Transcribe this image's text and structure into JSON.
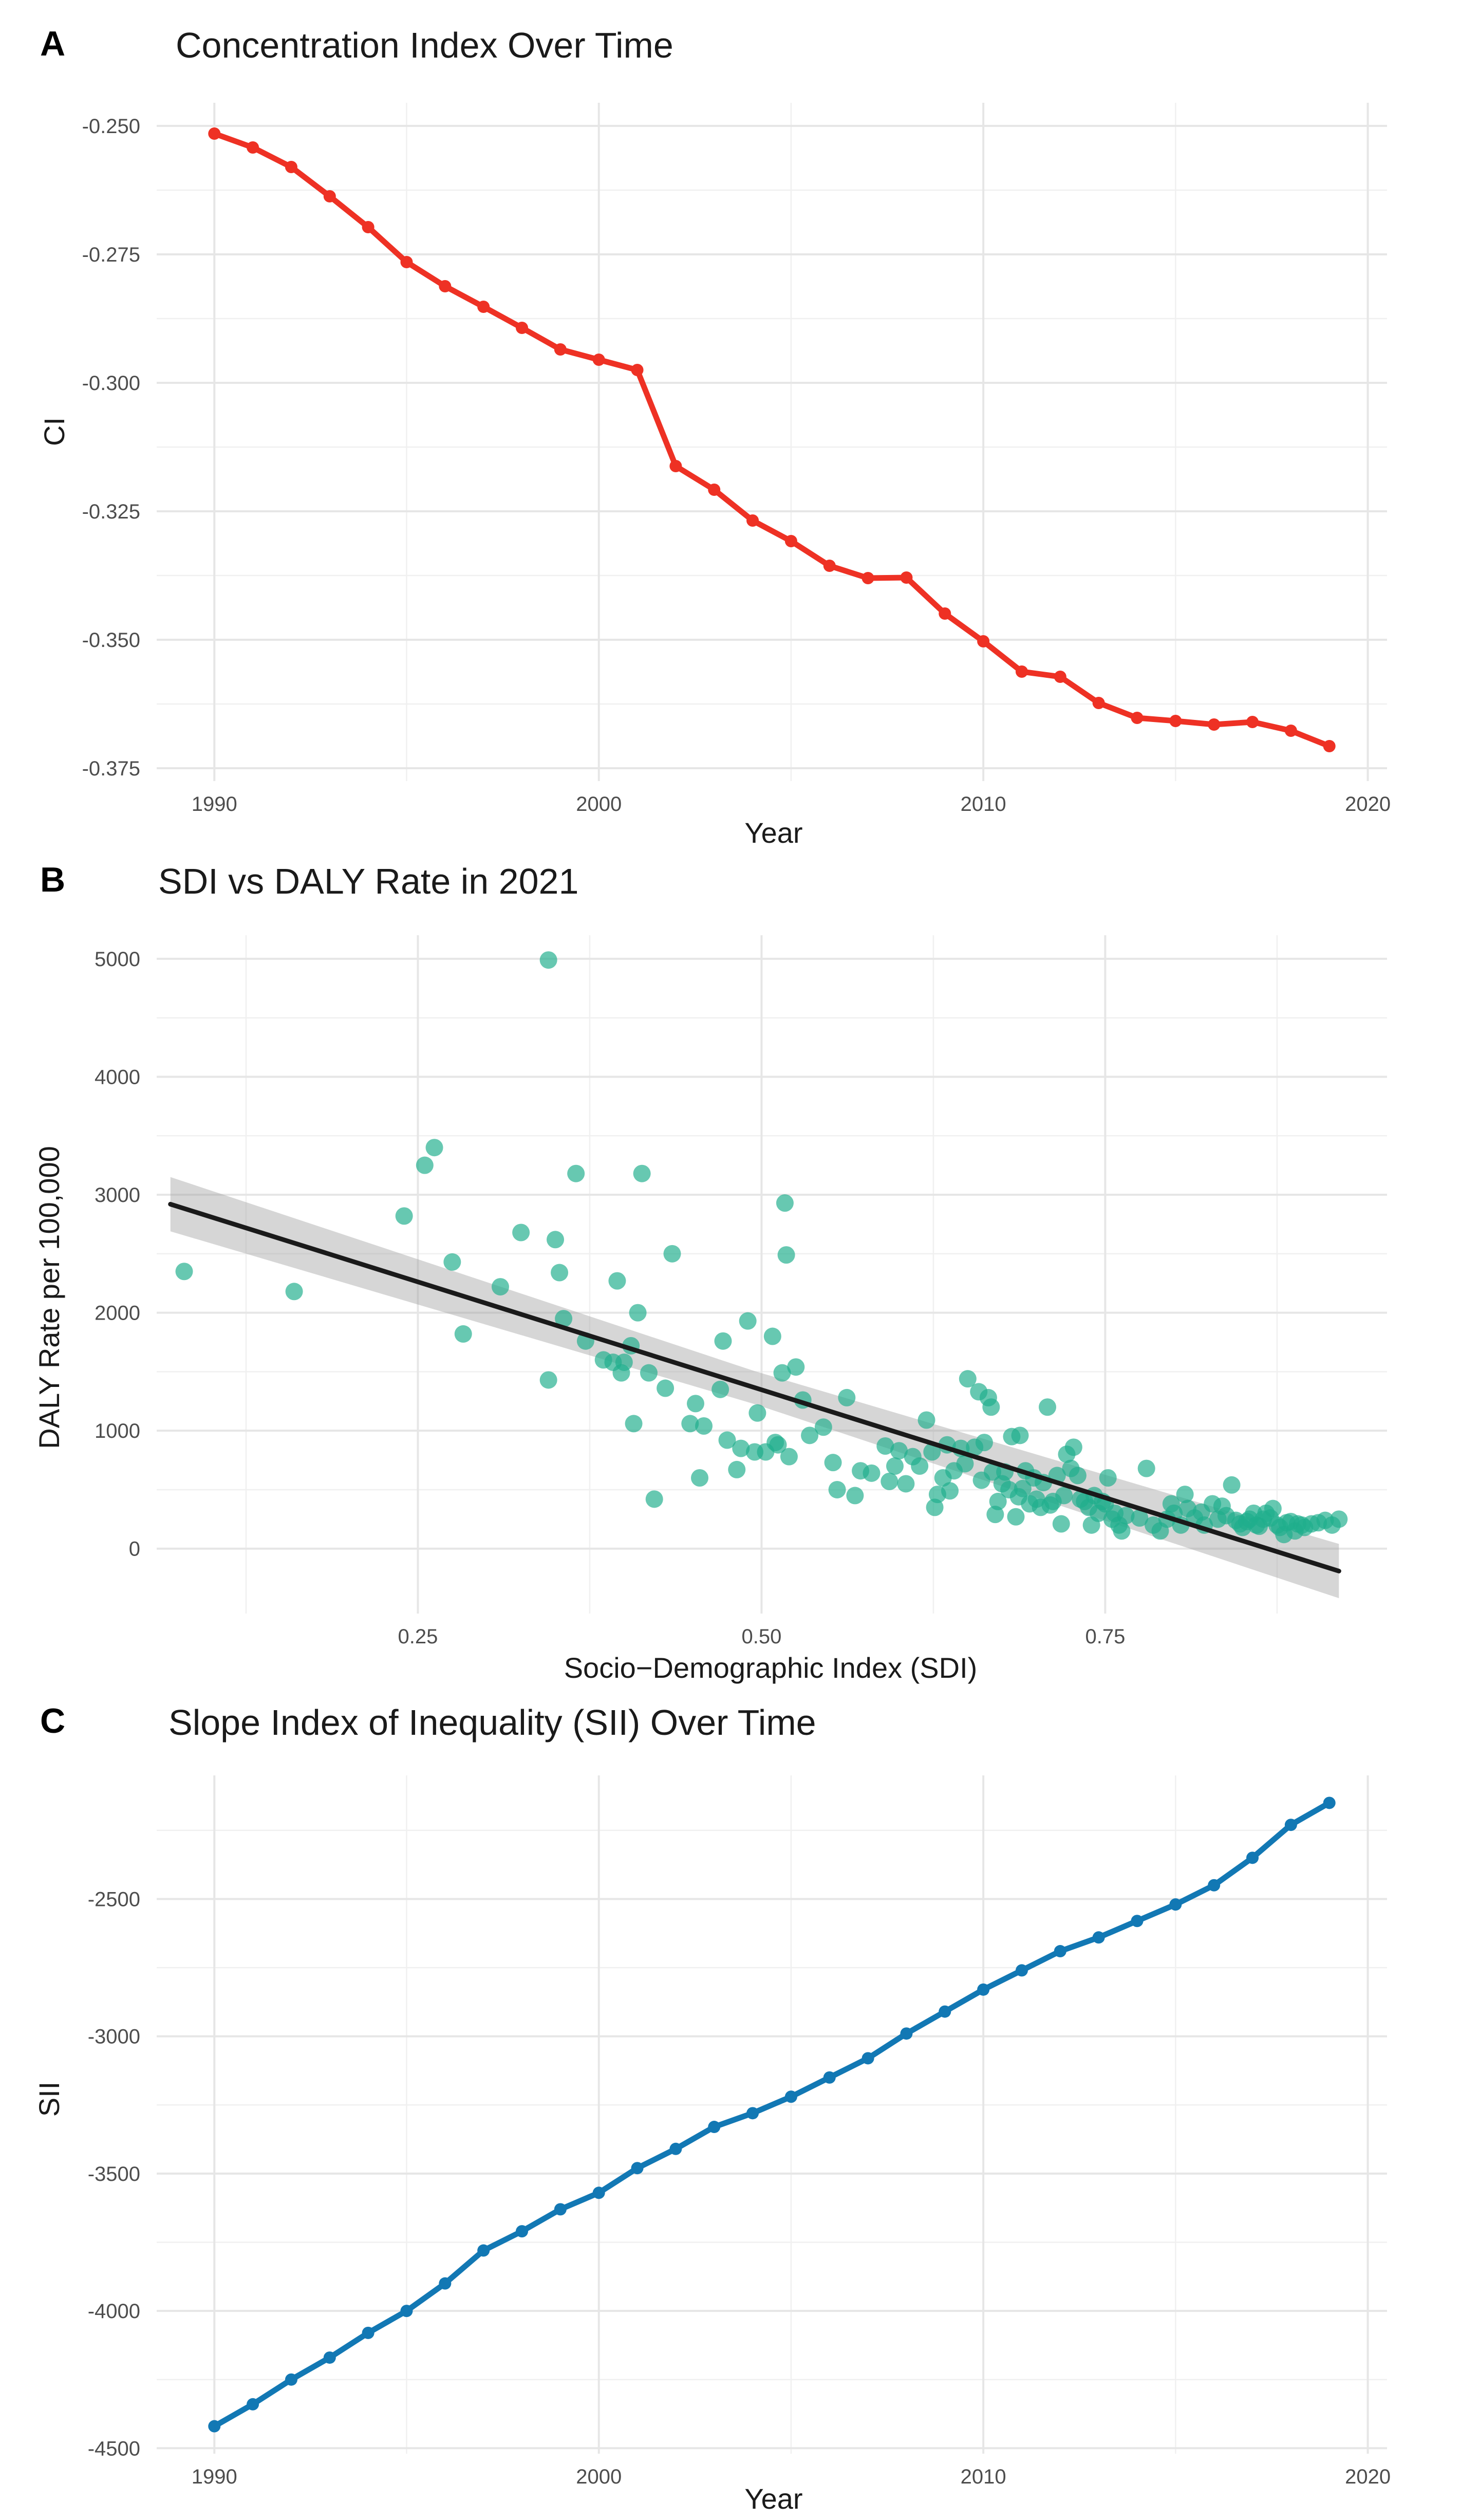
{
  "chart_data": [
    {
      "tag": "A",
      "type": "line",
      "title": "Concentration Index Over Time",
      "xlabel": "Year",
      "ylabel": "CI",
      "color": "#EE3124",
      "xlim": [
        1988.5,
        2020.5
      ],
      "ylim": [
        -0.3775,
        -0.2455
      ],
      "xticks": [
        1990,
        2000,
        2010,
        2020
      ],
      "yticks": [
        -0.25,
        -0.275,
        -0.3,
        -0.325,
        -0.35,
        -0.375
      ],
      "ytick_labels": [
        "-0.250",
        "-0.275",
        "-0.300",
        "-0.325",
        "-0.350",
        "-0.375"
      ],
      "xminor": [
        1995,
        2005,
        2015
      ],
      "yminor": [
        -0.2625,
        -0.2875,
        -0.3125,
        -0.3375,
        -0.3625
      ],
      "x": [
        1990,
        1991,
        1992,
        1993,
        1994,
        1995,
        1996,
        1997,
        1998,
        1999,
        2000,
        2001,
        2002,
        2003,
        2004,
        2005,
        2006,
        2007,
        2008,
        2009,
        2010,
        2011,
        2012,
        2013,
        2014,
        2015,
        2016,
        2017,
        2018,
        2019
      ],
      "y": [
        -0.2515,
        -0.2542,
        -0.258,
        -0.2637,
        -0.2697,
        -0.2765,
        -0.2812,
        -0.2852,
        -0.2893,
        -0.2935,
        -0.2955,
        -0.2975,
        -0.3162,
        -0.3208,
        -0.3268,
        -0.3308,
        -0.3356,
        -0.338,
        -0.3379,
        -0.3449,
        -0.3503,
        -0.3562,
        -0.3572,
        -0.3623,
        -0.3652,
        -0.3658,
        -0.3665,
        -0.366,
        -0.3677,
        -0.3707
      ]
    },
    {
      "tag": "B",
      "type": "scatter",
      "title": "SDI vs DALY Rate in 2021",
      "xlabel": "Socio−Demographic Index (SDI)",
      "ylabel": "DALY Rate per 100,000",
      "color": "#1FAE8C",
      "line_color": "#1a1a1a",
      "band_color": "#999999",
      "xlim": [
        0.06,
        0.955
      ],
      "ylim": [
        -550,
        5200
      ],
      "xticks": [
        0.25,
        0.5,
        0.75
      ],
      "xtick_labels": [
        "0.25",
        "0.50",
        "0.75"
      ],
      "yticks": [
        0,
        1000,
        2000,
        3000,
        4000,
        5000
      ],
      "ytick_labels": [
        "0",
        "1000",
        "2000",
        "3000",
        "4000",
        "5000"
      ],
      "xminor": [
        0.125,
        0.375,
        0.625,
        0.875
      ],
      "yminor": [
        500,
        1500,
        2500,
        3500,
        4500
      ],
      "fit": {
        "x": [
          0.07,
          0.92
        ],
        "y": [
          2920,
          -190
        ],
        "band": [
          230,
          140,
          230
        ]
      },
      "points": [
        [
          0.08,
          2350
        ],
        [
          0.16,
          2180
        ],
        [
          0.24,
          2820
        ],
        [
          0.255,
          3250
        ],
        [
          0.262,
          3400
        ],
        [
          0.275,
          2430
        ],
        [
          0.283,
          1820
        ],
        [
          0.31,
          2220
        ],
        [
          0.325,
          2680
        ],
        [
          0.345,
          4990
        ],
        [
          0.345,
          1430
        ],
        [
          0.35,
          2620
        ],
        [
          0.353,
          2340
        ],
        [
          0.356,
          1950
        ],
        [
          0.365,
          3180
        ],
        [
          0.372,
          1760
        ],
        [
          0.385,
          1600
        ],
        [
          0.392,
          1580
        ],
        [
          0.395,
          2270
        ],
        [
          0.398,
          1490
        ],
        [
          0.4,
          1580
        ],
        [
          0.405,
          1720
        ],
        [
          0.407,
          1060
        ],
        [
          0.41,
          2000
        ],
        [
          0.413,
          3180
        ],
        [
          0.418,
          1490
        ],
        [
          0.422,
          420
        ],
        [
          0.43,
          1360
        ],
        [
          0.435,
          2500
        ],
        [
          0.448,
          1060
        ],
        [
          0.452,
          1230
        ],
        [
          0.455,
          600
        ],
        [
          0.458,
          1040
        ],
        [
          0.47,
          1350
        ],
        [
          0.472,
          1760
        ],
        [
          0.475,
          920
        ],
        [
          0.482,
          670
        ],
        [
          0.485,
          850
        ],
        [
          0.49,
          1930
        ],
        [
          0.495,
          820
        ],
        [
          0.497,
          1150
        ],
        [
          0.503,
          820
        ],
        [
          0.508,
          1800
        ],
        [
          0.51,
          900
        ],
        [
          0.512,
          880
        ],
        [
          0.515,
          1490
        ],
        [
          0.517,
          2930
        ],
        [
          0.518,
          2490
        ],
        [
          0.52,
          780
        ],
        [
          0.525,
          1540
        ],
        [
          0.53,
          1260
        ],
        [
          0.535,
          960
        ],
        [
          0.545,
          1030
        ],
        [
          0.552,
          730
        ],
        [
          0.555,
          500
        ],
        [
          0.562,
          1280
        ],
        [
          0.568,
          450
        ],
        [
          0.572,
          660
        ],
        [
          0.58,
          640
        ],
        [
          0.59,
          870
        ],
        [
          0.593,
          570
        ],
        [
          0.597,
          700
        ],
        [
          0.6,
          830
        ],
        [
          0.605,
          550
        ],
        [
          0.61,
          780
        ],
        [
          0.615,
          700
        ],
        [
          0.62,
          1090
        ],
        [
          0.624,
          820
        ],
        [
          0.626,
          350
        ],
        [
          0.628,
          460
        ],
        [
          0.632,
          600
        ],
        [
          0.635,
          880
        ],
        [
          0.637,
          490
        ],
        [
          0.64,
          660
        ],
        [
          0.645,
          850
        ],
        [
          0.648,
          720
        ],
        [
          0.65,
          1440
        ],
        [
          0.655,
          860
        ],
        [
          0.658,
          1330
        ],
        [
          0.66,
          580
        ],
        [
          0.662,
          900
        ],
        [
          0.665,
          1280
        ],
        [
          0.667,
          1200
        ],
        [
          0.668,
          650
        ],
        [
          0.67,
          290
        ],
        [
          0.672,
          400
        ],
        [
          0.675,
          550
        ],
        [
          0.677,
          650
        ],
        [
          0.68,
          500
        ],
        [
          0.682,
          950
        ],
        [
          0.685,
          270
        ],
        [
          0.687,
          440
        ],
        [
          0.688,
          960
        ],
        [
          0.69,
          510
        ],
        [
          0.692,
          660
        ],
        [
          0.695,
          380
        ],
        [
          0.698,
          600
        ],
        [
          0.7,
          420
        ],
        [
          0.703,
          350
        ],
        [
          0.705,
          560
        ],
        [
          0.708,
          1200
        ],
        [
          0.71,
          370
        ],
        [
          0.712,
          400
        ],
        [
          0.715,
          620
        ],
        [
          0.718,
          210
        ],
        [
          0.72,
          450
        ],
        [
          0.722,
          800
        ],
        [
          0.725,
          680
        ],
        [
          0.727,
          860
        ],
        [
          0.73,
          620
        ],
        [
          0.732,
          420
        ],
        [
          0.735,
          400
        ],
        [
          0.738,
          350
        ],
        [
          0.74,
          200
        ],
        [
          0.742,
          450
        ],
        [
          0.745,
          300
        ],
        [
          0.748,
          400
        ],
        [
          0.75,
          380
        ],
        [
          0.752,
          600
        ],
        [
          0.755,
          250
        ],
        [
          0.757,
          300
        ],
        [
          0.76,
          200
        ],
        [
          0.762,
          150
        ],
        [
          0.765,
          280
        ],
        [
          0.775,
          260
        ],
        [
          0.78,
          680
        ],
        [
          0.785,
          200
        ],
        [
          0.79,
          150
        ],
        [
          0.795,
          250
        ],
        [
          0.798,
          380
        ],
        [
          0.8,
          300
        ],
        [
          0.805,
          200
        ],
        [
          0.808,
          460
        ],
        [
          0.81,
          340
        ],
        [
          0.815,
          260
        ],
        [
          0.82,
          310
        ],
        [
          0.822,
          200
        ],
        [
          0.828,
          380
        ],
        [
          0.832,
          250
        ],
        [
          0.835,
          360
        ],
        [
          0.838,
          280
        ],
        [
          0.842,
          540
        ],
        [
          0.845,
          240
        ],
        [
          0.848,
          210
        ],
        [
          0.85,
          180
        ],
        [
          0.853,
          230
        ],
        [
          0.855,
          250
        ],
        [
          0.858,
          300
        ],
        [
          0.86,
          200
        ],
        [
          0.862,
          190
        ],
        [
          0.865,
          250
        ],
        [
          0.867,
          300
        ],
        [
          0.87,
          260
        ],
        [
          0.872,
          340
        ],
        [
          0.875,
          200
        ],
        [
          0.877,
          180
        ],
        [
          0.88,
          120
        ],
        [
          0.882,
          220
        ],
        [
          0.885,
          230
        ],
        [
          0.888,
          150
        ],
        [
          0.89,
          210
        ],
        [
          0.893,
          200
        ],
        [
          0.895,
          180
        ],
        [
          0.9,
          210
        ],
        [
          0.905,
          220
        ],
        [
          0.91,
          240
        ],
        [
          0.915,
          200
        ],
        [
          0.92,
          250
        ]
      ]
    },
    {
      "tag": "C",
      "type": "line",
      "title": "Slope Index of Inequality (SII) Over Time",
      "xlabel": "Year",
      "ylabel": "SII",
      "color": "#1278B4",
      "xlim": [
        1988.5,
        2020.5
      ],
      "ylim": [
        -4520,
        -2050
      ],
      "xticks": [
        1990,
        2000,
        2010,
        2020
      ],
      "yticks": [
        -2500,
        -3000,
        -3500,
        -4000,
        -4500
      ],
      "ytick_labels": [
        "-2500",
        "-3000",
        "-3500",
        "-4000",
        "-4500"
      ],
      "xminor": [
        1995,
        2005,
        2015
      ],
      "yminor": [
        -2250,
        -2750,
        -3250,
        -3750,
        -4250
      ],
      "x": [
        1990,
        1991,
        1992,
        1993,
        1994,
        1995,
        1996,
        1997,
        1998,
        1999,
        2000,
        2001,
        2002,
        2003,
        2004,
        2005,
        2006,
        2007,
        2008,
        2009,
        2010,
        2011,
        2012,
        2013,
        2014,
        2015,
        2016,
        2017,
        2018,
        2019
      ],
      "y": [
        -4420,
        -4340,
        -4250,
        -4170,
        -4080,
        -4000,
        -3900,
        -3780,
        -3710,
        -3630,
        -3570,
        -3480,
        -3410,
        -3330,
        -3280,
        -3220,
        -3150,
        -3080,
        -2990,
        -2910,
        -2830,
        -2760,
        -2690,
        -2640,
        -2580,
        -2520,
        -2450,
        -2350,
        -2230,
        -2150
      ]
    }
  ]
}
